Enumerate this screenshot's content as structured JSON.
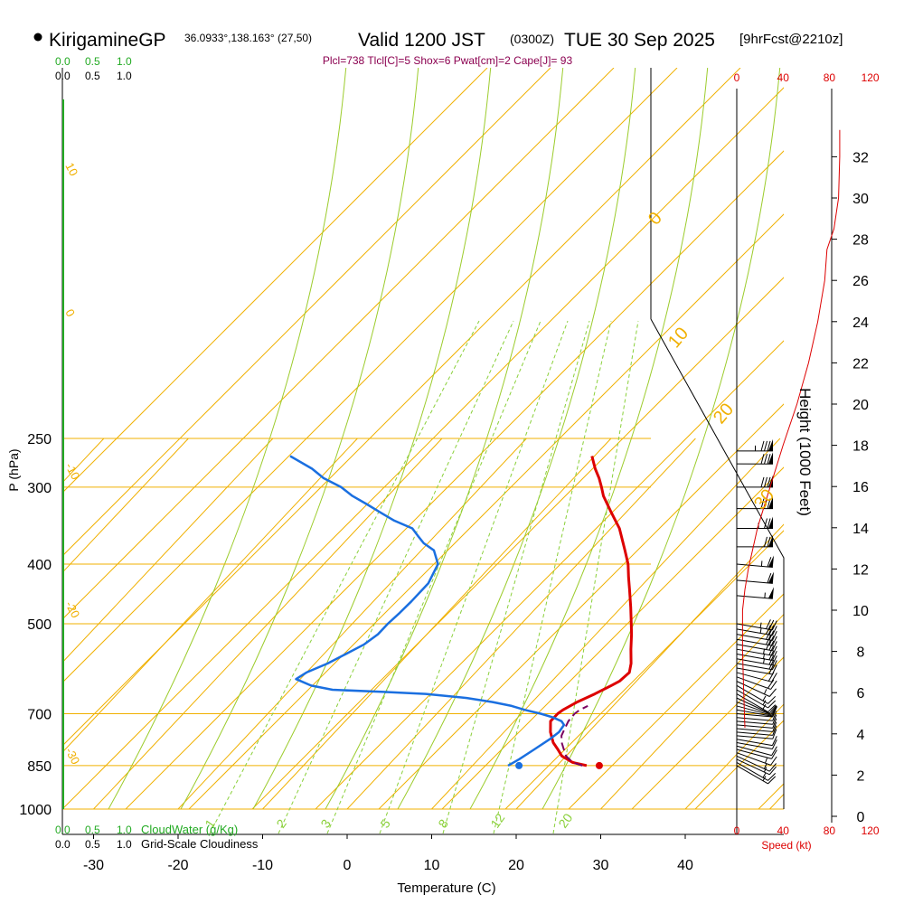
{
  "header": {
    "station": "KirigamineGP",
    "coords": "36.0933°,138.163° (27,50)",
    "valid": "Valid 1200 JST",
    "zulu": "(0300Z)",
    "date": "TUE 30 Sep 2025",
    "forecast": "[9hrFcst@2210z]"
  },
  "params_line": "Plcl=738 Tlcl[C]=5 Shox=6 Pwat[cm]=2 Cape[J]= 93",
  "colors": {
    "temperature": "#dd0000",
    "dewpoint": "#1a6fe0",
    "parcel": "#7a0060",
    "isotherm": "#f0b000",
    "dry_adiabat": "#f0b000",
    "moist_adiabat": "#9ccc2c",
    "mixing_ratio": "#8ad03a",
    "cloud": "#22aa22",
    "speed": "#dd0000",
    "header_params": "#8b0050"
  },
  "chart_data": {
    "type": "line",
    "title": "Skew-T log-P sounding",
    "xlabel": "Temperature (C)",
    "ylabel": "P (hPa)",
    "y2label": "Height (1000 Feet)",
    "xlim": [
      -30,
      40
    ],
    "pressure_ticks": [
      "250",
      "300",
      "400",
      "500",
      "700",
      "850",
      "1000"
    ],
    "temperature_ticks": [
      "-30",
      "-20",
      "-10",
      "0",
      "10",
      "20",
      "30",
      "40"
    ],
    "height_ticks": [
      "0",
      "2",
      "4",
      "6",
      "8",
      "10",
      "12",
      "14",
      "16",
      "18",
      "20",
      "22",
      "24",
      "26",
      "28",
      "30",
      "32"
    ],
    "speed_ticks": [
      "0",
      "40",
      "80",
      "120"
    ],
    "speed_label": "Speed (kt)",
    "cloud_ticks": [
      "0.0",
      "0.5",
      "1.0"
    ],
    "cloudwater_label": "CloudWater (g/Kg)",
    "cloudiness_label": "Grid-Scale Cloudiness",
    "mixing_ratio_labels": [
      "1",
      "2",
      "3",
      "5",
      "8",
      "12",
      "20"
    ],
    "theta_labels": [
      "10",
      "0",
      "-10",
      "-20",
      "-30"
    ],
    "thetae_labels": [
      "0",
      "10",
      "20",
      "30"
    ],
    "series": [
      {
        "name": "temperature",
        "points": [
          [
            850,
            23.5
          ],
          [
            840,
            21.5
          ],
          [
            820,
            19.5
          ],
          [
            800,
            18.3
          ],
          [
            780,
            17
          ],
          [
            750,
            15.5
          ],
          [
            720,
            14.3
          ],
          [
            700,
            14.3
          ],
          [
            690,
            14.5
          ],
          [
            670,
            15.3
          ],
          [
            650,
            16.5
          ],
          [
            630,
            17.5
          ],
          [
            620,
            18
          ],
          [
            600,
            18.2
          ],
          [
            580,
            17.4
          ],
          [
            550,
            15.8
          ],
          [
            520,
            14.2
          ],
          [
            500,
            13
          ],
          [
            470,
            11.1
          ],
          [
            440,
            9
          ],
          [
            420,
            7.5
          ],
          [
            400,
            6
          ],
          [
            380,
            4.1
          ],
          [
            350,
            1
          ],
          [
            330,
            -1.7
          ],
          [
            310,
            -4.5
          ],
          [
            300,
            -5.7
          ],
          [
            290,
            -7
          ],
          [
            280,
            -8.5
          ],
          [
            267,
            -10.3
          ]
        ]
      },
      {
        "name": "dewpoint",
        "points": [
          [
            850,
            14.2
          ],
          [
            830,
            14.8
          ],
          [
            800,
            15.5
          ],
          [
            770,
            16.2
          ],
          [
            750,
            16.5
          ],
          [
            730,
            16.3
          ],
          [
            720,
            15.6
          ],
          [
            710,
            14.2
          ],
          [
            700,
            12.3
          ],
          [
            690,
            10
          ],
          [
            680,
            8
          ],
          [
            670,
            5.3
          ],
          [
            660,
            1.8
          ],
          [
            650,
            -3.5
          ],
          [
            645,
            -9
          ],
          [
            640,
            -15
          ],
          [
            630,
            -18
          ],
          [
            615,
            -20.5
          ],
          [
            600,
            -20
          ],
          [
            580,
            -18.5
          ],
          [
            560,
            -17.4
          ],
          [
            540,
            -16.3
          ],
          [
            520,
            -15.8
          ],
          [
            500,
            -15.8
          ],
          [
            480,
            -15.6
          ],
          [
            460,
            -15.5
          ],
          [
            430,
            -15.5
          ],
          [
            400,
            -16.5
          ],
          [
            380,
            -18.5
          ],
          [
            370,
            -20.5
          ],
          [
            360,
            -22
          ],
          [
            350,
            -23.5
          ],
          [
            340,
            -26.5
          ],
          [
            330,
            -29
          ],
          [
            320,
            -31.5
          ],
          [
            310,
            -34.2
          ],
          [
            300,
            -36.5
          ],
          [
            290,
            -39.6
          ],
          [
            280,
            -42
          ],
          [
            267,
            -46
          ]
        ]
      },
      {
        "name": "parcel",
        "points": [
          [
            850,
            23
          ],
          [
            840,
            21.5
          ],
          [
            820,
            20
          ],
          [
            800,
            19
          ],
          [
            780,
            18
          ],
          [
            760,
            17.2
          ],
          [
            740,
            16.8
          ],
          [
            720,
            16.4
          ],
          [
            700,
            16.3
          ],
          [
            690,
            16.5
          ],
          [
            680,
            17
          ]
        ]
      }
    ],
    "surface": {
      "temperature": 25,
      "dewpoint": 15.5
    },
    "wind_speed": [
      {
        "height_kft": 4.3,
        "kt": 7
      },
      {
        "height_kft": 6,
        "kt": 6
      },
      {
        "height_kft": 8,
        "kt": 5
      },
      {
        "height_kft": 10,
        "kt": 5
      },
      {
        "height_kft": 11,
        "kt": 7
      },
      {
        "height_kft": 12,
        "kt": 10
      },
      {
        "height_kft": 14,
        "kt": 18
      },
      {
        "height_kft": 16,
        "kt": 29
      },
      {
        "height_kft": 18,
        "kt": 40
      },
      {
        "height_kft": 20,
        "kt": 52
      },
      {
        "height_kft": 22,
        "kt": 62
      },
      {
        "height_kft": 24,
        "kt": 70
      },
      {
        "height_kft": 26,
        "kt": 76
      },
      {
        "height_kft": 27.5,
        "kt": 78
      },
      {
        "height_kft": 28.5,
        "kt": 84
      },
      {
        "height_kft": 30,
        "kt": 88
      },
      {
        "height_kft": 32,
        "kt": 89
      },
      {
        "height_kft": 33.3,
        "kt": 89
      }
    ],
    "wind_barbs": [
      {
        "pressure": 850,
        "dir": 300,
        "kt": 15
      },
      {
        "pressure": 840,
        "dir": 300,
        "kt": 15
      },
      {
        "pressure": 830,
        "dir": 295,
        "kt": 15
      },
      {
        "pressure": 820,
        "dir": 295,
        "kt": 15
      },
      {
        "pressure": 810,
        "dir": 290,
        "kt": 15
      },
      {
        "pressure": 800,
        "dir": 285,
        "kt": 10
      },
      {
        "pressure": 790,
        "dir": 285,
        "kt": 10
      },
      {
        "pressure": 780,
        "dir": 280,
        "kt": 10
      },
      {
        "pressure": 770,
        "dir": 280,
        "kt": 10
      },
      {
        "pressure": 760,
        "dir": 275,
        "kt": 10
      },
      {
        "pressure": 750,
        "dir": 275,
        "kt": 10
      },
      {
        "pressure": 740,
        "dir": 275,
        "kt": 10
      },
      {
        "pressure": 730,
        "dir": 275,
        "kt": 10
      },
      {
        "pressure": 720,
        "dir": 275,
        "kt": 10
      },
      {
        "pressure": 710,
        "dir": 275,
        "kt": 10
      },
      {
        "pressure": 700,
        "dir": 275,
        "kt": 10
      },
      {
        "pressure": 690,
        "dir": 280,
        "kt": 10
      },
      {
        "pressure": 680,
        "dir": 285,
        "kt": 10
      },
      {
        "pressure": 670,
        "dir": 290,
        "kt": 10
      },
      {
        "pressure": 660,
        "dir": 295,
        "kt": 10
      },
      {
        "pressure": 650,
        "dir": 300,
        "kt": 15
      },
      {
        "pressure": 640,
        "dir": 300,
        "kt": 15
      },
      {
        "pressure": 630,
        "dir": 300,
        "kt": 15
      },
      {
        "pressure": 620,
        "dir": 295,
        "kt": 15
      },
      {
        "pressure": 610,
        "dir": 290,
        "kt": 20
      },
      {
        "pressure": 600,
        "dir": 285,
        "kt": 20
      },
      {
        "pressure": 590,
        "dir": 280,
        "kt": 20
      },
      {
        "pressure": 580,
        "dir": 280,
        "kt": 20
      },
      {
        "pressure": 570,
        "dir": 280,
        "kt": 25
      },
      {
        "pressure": 560,
        "dir": 280,
        "kt": 25
      },
      {
        "pressure": 550,
        "dir": 280,
        "kt": 25
      },
      {
        "pressure": 540,
        "dir": 280,
        "kt": 30
      },
      {
        "pressure": 530,
        "dir": 280,
        "kt": 30
      },
      {
        "pressure": 520,
        "dir": 280,
        "kt": 30
      },
      {
        "pressure": 510,
        "dir": 280,
        "kt": 35
      },
      {
        "pressure": 500,
        "dir": 280,
        "kt": 35
      },
      {
        "pressure": 450,
        "dir": 275,
        "kt": 55
      },
      {
        "pressure": 425,
        "dir": 275,
        "kt": 60
      },
      {
        "pressure": 400,
        "dir": 275,
        "kt": 65
      },
      {
        "pressure": 375,
        "dir": 270,
        "kt": 70
      },
      {
        "pressure": 350,
        "dir": 270,
        "kt": 75
      },
      {
        "pressure": 325,
        "dir": 270,
        "kt": 80
      },
      {
        "pressure": 300,
        "dir": 270,
        "kt": 80
      },
      {
        "pressure": 275,
        "dir": 270,
        "kt": 80
      },
      {
        "pressure": 262,
        "dir": 270,
        "kt": 85
      }
    ]
  }
}
